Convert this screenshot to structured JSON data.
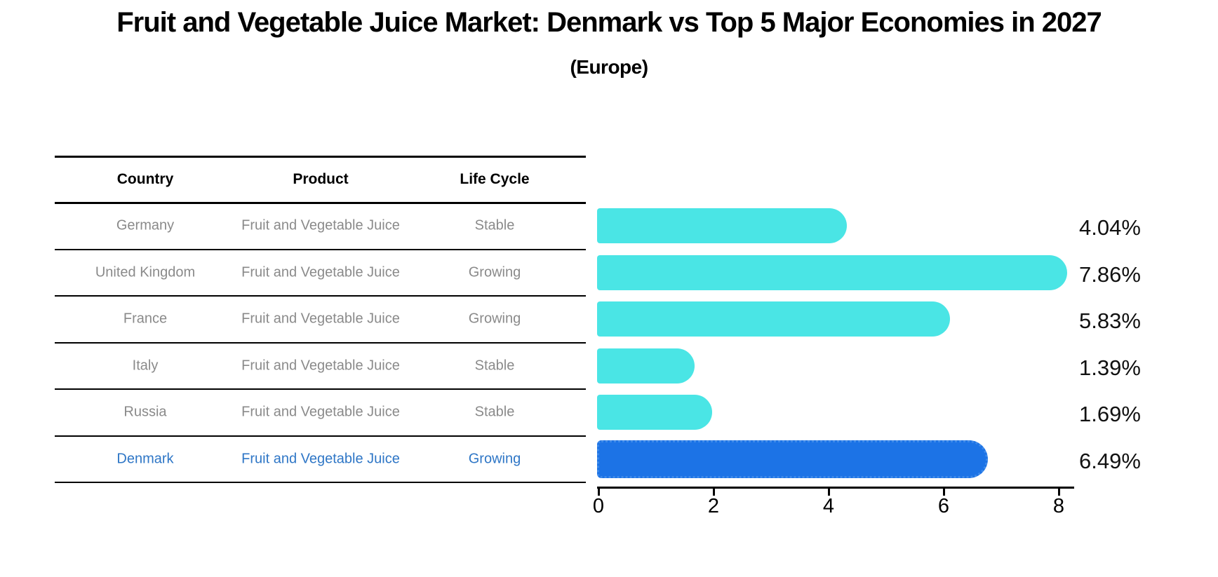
{
  "chart_data": {
    "type": "bar",
    "orientation": "horizontal",
    "title": "Fruit and Vegetable Juice Market: Denmark vs Top 5 Major Economies in 2027",
    "subtitle": "(Europe)",
    "categories": [
      "Germany",
      "United Kingdom",
      "France",
      "Italy",
      "Russia",
      "Denmark"
    ],
    "values": [
      4.04,
      7.86,
      5.83,
      1.39,
      1.69,
      6.49
    ],
    "value_labels": [
      "4.04%",
      "7.86%",
      "5.83%",
      "1.39%",
      "1.69%",
      "6.49%"
    ],
    "xlim": [
      0,
      8.3
    ],
    "xticks": [
      0,
      2,
      4,
      6,
      8
    ],
    "grid": false,
    "legend": "none",
    "highlight_index": 5
  },
  "table": {
    "headers": [
      "Country",
      "Product",
      "Life Cycle"
    ],
    "rows": [
      {
        "country": "Germany",
        "product": "Fruit and Vegetable Juice",
        "life_cycle": "Stable",
        "highlighted": false
      },
      {
        "country": "United Kingdom",
        "product": "Fruit and Vegetable Juice",
        "life_cycle": "Growing",
        "highlighted": false
      },
      {
        "country": "France",
        "product": "Fruit and Vegetable Juice",
        "life_cycle": "Growing",
        "highlighted": false
      },
      {
        "country": "Italy",
        "product": "Fruit and Vegetable Juice",
        "life_cycle": "Stable",
        "highlighted": false
      },
      {
        "country": "Russia",
        "product": "Fruit and Vegetable Juice",
        "life_cycle": "Stable",
        "highlighted": false
      },
      {
        "country": "Denmark",
        "product": "Fruit and Vegetable Juice",
        "life_cycle": "Growing",
        "highlighted": true
      }
    ]
  },
  "colors": {
    "bar": "#4AE5E5",
    "highlight_bar": "#1C73E6",
    "highlight_bar_border": "#3E8AEA",
    "table_text": "#8A8A8A",
    "header_text": "#000000",
    "highlight_text": "#2E76C6",
    "axis": "#000000",
    "value_label": "#111111",
    "background": "#FFFFFF"
  }
}
